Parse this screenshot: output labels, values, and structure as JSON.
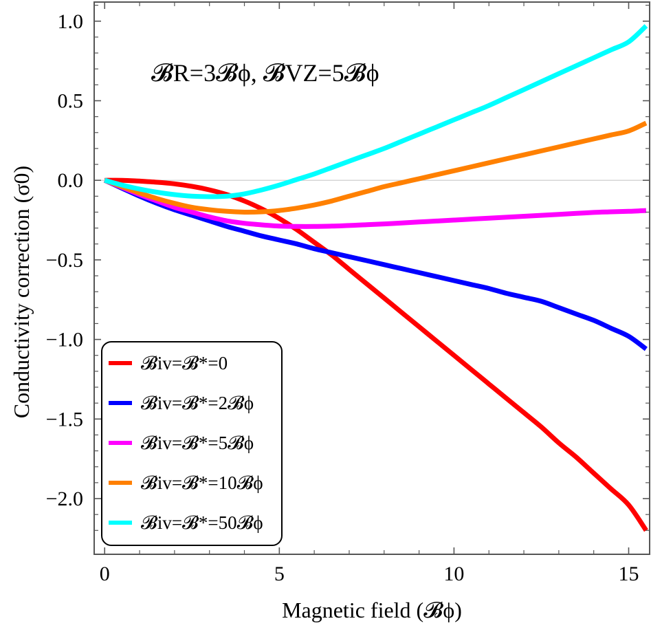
{
  "chart_data": {
    "type": "line",
    "title": "",
    "xlabel": "Magnetic field (𝓑ϕ)",
    "ylabel": "Conductivity correction (σ0)",
    "xlim": [
      -0.3,
      15.6
    ],
    "ylim": [
      -2.35,
      1.12
    ],
    "x_ticks": [
      0,
      5,
      10,
      15
    ],
    "x_tick_labels": [
      "0",
      "5",
      "10",
      "15"
    ],
    "y_ticks": [
      1.0,
      0.5,
      0.0,
      -0.5,
      -1.0,
      -1.5,
      -2.0
    ],
    "y_tick_labels": [
      "1.0",
      "0.5",
      "0.0",
      "−0.5",
      "−1.0",
      "−1.5",
      "−2.0"
    ],
    "annotation": "𝓑R=3𝓑ϕ, 𝓑VZ=5𝓑ϕ",
    "legend_position": "bottom-left",
    "grid": false,
    "zero_line": true,
    "x": [
      0,
      0.5,
      1,
      1.5,
      2,
      2.5,
      3,
      3.5,
      4,
      4.5,
      5,
      5.5,
      6,
      6.5,
      7,
      7.5,
      8,
      8.5,
      9,
      9.5,
      10,
      10.5,
      11,
      11.5,
      12,
      12.5,
      13,
      13.5,
      14,
      14.5,
      15,
      15.5
    ],
    "series": [
      {
        "name": "𝓑iv=𝓑*=0",
        "color": "#ff0000",
        "values": [
          0,
          0,
          -0.005,
          -0.012,
          -0.022,
          -0.038,
          -0.06,
          -0.09,
          -0.13,
          -0.18,
          -0.24,
          -0.31,
          -0.39,
          -0.47,
          -0.56,
          -0.65,
          -0.74,
          -0.83,
          -0.92,
          -1.01,
          -1.1,
          -1.19,
          -1.28,
          -1.37,
          -1.46,
          -1.55,
          -1.65,
          -1.74,
          -1.84,
          -1.94,
          -2.04,
          -2.2
        ]
      },
      {
        "name": "𝓑iv=𝓑*=2𝓑ϕ",
        "color": "#0000ff",
        "values": [
          0,
          -0.05,
          -0.1,
          -0.145,
          -0.185,
          -0.22,
          -0.255,
          -0.29,
          -0.32,
          -0.35,
          -0.375,
          -0.4,
          -0.43,
          -0.455,
          -0.48,
          -0.505,
          -0.53,
          -0.555,
          -0.58,
          -0.605,
          -0.63,
          -0.655,
          -0.68,
          -0.71,
          -0.735,
          -0.76,
          -0.8,
          -0.84,
          -0.88,
          -0.93,
          -0.98,
          -1.06
        ]
      },
      {
        "name": "𝓑iv=𝓑*=5𝓑ϕ",
        "color": "#ff00ff",
        "values": [
          0,
          -0.045,
          -0.09,
          -0.13,
          -0.17,
          -0.2,
          -0.23,
          -0.255,
          -0.27,
          -0.28,
          -0.288,
          -0.29,
          -0.29,
          -0.288,
          -0.284,
          -0.279,
          -0.274,
          -0.268,
          -0.262,
          -0.256,
          -0.25,
          -0.244,
          -0.238,
          -0.232,
          -0.226,
          -0.22,
          -0.214,
          -0.208,
          -0.202,
          -0.198,
          -0.195,
          -0.19
        ]
      },
      {
        "name": "𝓑iv=𝓑*=10𝓑ϕ",
        "color": "#ff8000",
        "values": [
          0,
          -0.04,
          -0.08,
          -0.115,
          -0.145,
          -0.17,
          -0.185,
          -0.195,
          -0.2,
          -0.198,
          -0.19,
          -0.175,
          -0.155,
          -0.13,
          -0.1,
          -0.07,
          -0.04,
          -0.015,
          0.01,
          0.035,
          0.06,
          0.085,
          0.11,
          0.135,
          0.16,
          0.185,
          0.21,
          0.235,
          0.26,
          0.285,
          0.31,
          0.36
        ]
      },
      {
        "name": "𝓑iv=𝓑*=50𝓑ϕ",
        "color": "#00ffff",
        "values": [
          0,
          -0.03,
          -0.055,
          -0.075,
          -0.09,
          -0.1,
          -0.103,
          -0.1,
          -0.085,
          -0.06,
          -0.03,
          0.005,
          0.04,
          0.08,
          0.12,
          0.16,
          0.2,
          0.245,
          0.29,
          0.335,
          0.38,
          0.425,
          0.47,
          0.52,
          0.57,
          0.62,
          0.67,
          0.72,
          0.77,
          0.82,
          0.87,
          0.97
        ]
      }
    ]
  }
}
